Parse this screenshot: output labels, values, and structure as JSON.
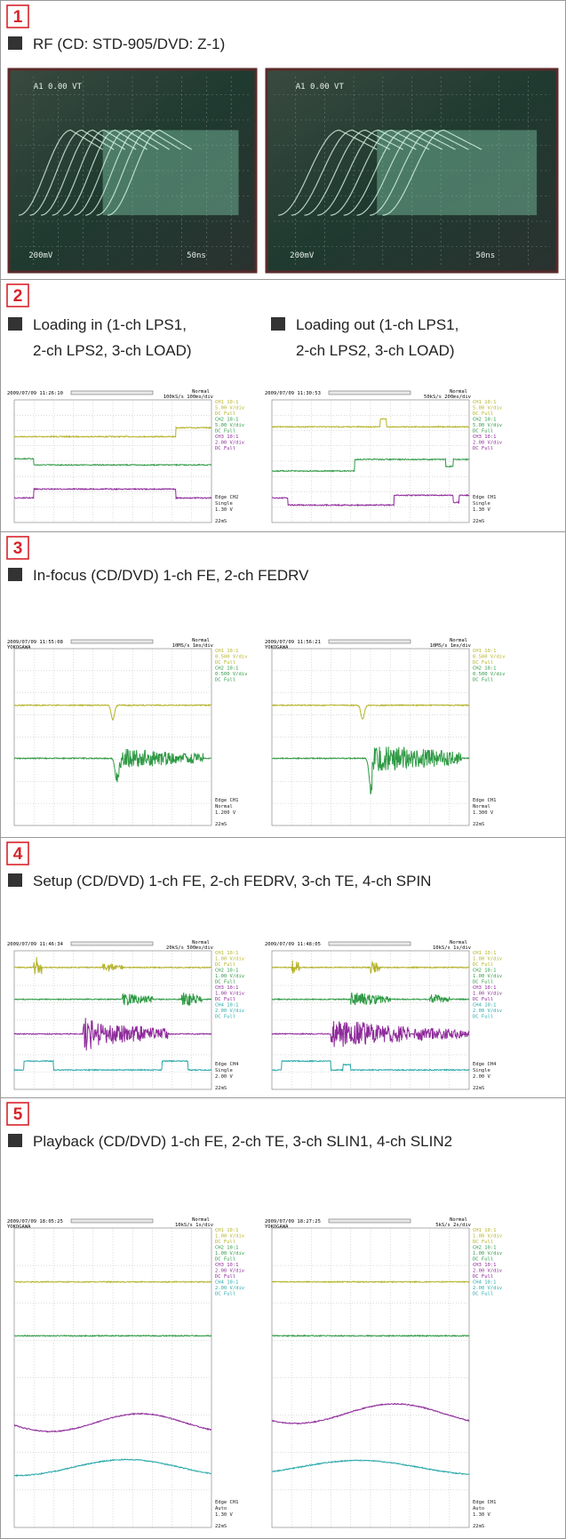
{
  "sections": [
    {
      "number": "1",
      "title": "RF (CD: STD-905/DVD: Z-1)",
      "photos": [
        {
          "header": "A1  0.00 VT",
          "scale": "200mV",
          "timebase": "50ns"
        },
        {
          "header": "A1  0.00 VT",
          "scale": "200mV",
          "timebase": "50ns"
        }
      ]
    },
    {
      "number": "2",
      "captions": [
        {
          "lines": [
            "Loading in (1-ch LPS1,",
            "2-ch LPS2, 3-ch LOAD)"
          ]
        },
        {
          "lines": [
            "Loading out (1-ch LPS1,",
            "2-ch LPS2, 3-ch LOAD)"
          ]
        }
      ],
      "scopes": [
        {
          "timestamp": "2009/07/09 11:26:10",
          "mode": "Normal",
          "rate": "100kS/s 100ms/div",
          "channels": [
            "CH1 10:1",
            "5.00 V/div",
            "DC  Full",
            "CH2 10:1",
            "5.00 V/div",
            "DC  Full",
            "CH3 10:1",
            "2.00 V/div",
            "DC  Full"
          ],
          "trigger": [
            "Edge CH2",
            "Single",
            "1.30 V",
            "22mS"
          ]
        },
        {
          "timestamp": "2009/07/09 11:30:53",
          "mode": "Normal",
          "rate": "50kS/s 200ms/div",
          "channels": [
            "CH1 10:1",
            "5.00 V/div",
            "DC  Full",
            "CH2 10:1",
            "5.00 V/div",
            "DC  Full",
            "CH3 10:1",
            "2.00 V/div",
            "DC  Full"
          ],
          "trigger": [
            "Edge CH1",
            "Single",
            "1.30 V",
            "22mS"
          ]
        }
      ]
    },
    {
      "number": "3",
      "title": "In-focus (CD/DVD) 1-ch FE, 2-ch FEDRV",
      "scopes": [
        {
          "timestamp": "2009/07/09 11:55:08",
          "brand": "YOKOGAWA",
          "mode": "Normal",
          "rate": "10MS/s 1ms/div",
          "channels": [
            "CH1 10:1",
            "0.500 V/div",
            "DC  Full",
            "CH2 10:1",
            "0.500 V/div",
            "DC  Full"
          ],
          "trigger": [
            "Edge CH1",
            "Normal",
            "1.200 V",
            "22mS"
          ]
        },
        {
          "timestamp": "2009/07/09 11:56:21",
          "brand": "YOKOGAWA",
          "mode": "Normal",
          "rate": "10MS/s 1ms/div",
          "channels": [
            "CH1 10:1",
            "0.500 V/div",
            "DC  Full",
            "CH2 10:1",
            "0.500 V/div",
            "DC  Full"
          ],
          "trigger": [
            "Edge CH1",
            "Normal",
            "1.300 V",
            "22mS"
          ]
        }
      ]
    },
    {
      "number": "4",
      "title": "Setup (CD/DVD) 1-ch FE, 2-ch FEDRV, 3-ch TE, 4-ch SPIN",
      "scopes": [
        {
          "timestamp": "2009/07/09 11:46:34",
          "mode": "Normal",
          "rate": "20kS/s 500ms/div",
          "channels": [
            "CH1 10:1",
            "1.00 V/div",
            "DC  Full",
            "CH2 10:1",
            "1.00 V/div",
            "DC  Full",
            "CH3 10:1",
            "1.00 V/div",
            "DC  Full",
            "CH4 10:1",
            "2.00 V/div",
            "DC  Full"
          ],
          "trigger": [
            "Edge CH4",
            "Single",
            "2.00 V",
            "22mS"
          ]
        },
        {
          "timestamp": "2009/07/09 11:48:05",
          "mode": "Normal",
          "rate": "10kS/s 1s/div",
          "channels": [
            "CH1 10:1",
            "1.00 V/div",
            "DC  Full",
            "CH2 10:1",
            "1.00 V/div",
            "DC  Full",
            "CH3 10:1",
            "1.00 V/div",
            "DC  Full",
            "CH4 10:1",
            "2.00 V/div",
            "DC  Full"
          ],
          "trigger": [
            "Edge CH4",
            "Single",
            "2.00 V",
            "22mS"
          ]
        }
      ]
    },
    {
      "number": "5",
      "title": "Playback (CD/DVD) 1-ch FE, 2-ch TE, 3-ch SLIN1, 4-ch SLIN2",
      "scopes": [
        {
          "timestamp": "2009/07/09 18:05:25",
          "brand": "YOKOGAWA",
          "mode": "Normal",
          "rate": "10kS/s 1s/div",
          "channels": [
            "CH1 10:1",
            "1.00 V/div",
            "DC  Full",
            "CH2 10:1",
            "1.00 V/div",
            "DC  Full",
            "CH3 10:1",
            "2.00 V/div",
            "DC  Full",
            "CH4 10:1",
            "2.00 V/div",
            "DC  Full"
          ],
          "trigger": [
            "Edge CH1",
            "Auto",
            "1.30 V",
            "22mS"
          ]
        },
        {
          "timestamp": "2009/07/09 18:27:25",
          "brand": "YOKOGAWA",
          "mode": "Normal",
          "rate": "5kS/s 2s/div",
          "channels": [
            "CH1 10:1",
            "1.00 V/div",
            "DC  Full",
            "CH2 10:1",
            "1.00 V/div",
            "DC  Full",
            "CH3 10:1",
            "2.00 V/div",
            "DC  Full",
            "CH4 10:1",
            "2.00 V/div",
            "DC  Full"
          ],
          "trigger": [
            "Edge CH1",
            "Auto",
            "1.30 V",
            "22mS"
          ]
        }
      ]
    }
  ]
}
